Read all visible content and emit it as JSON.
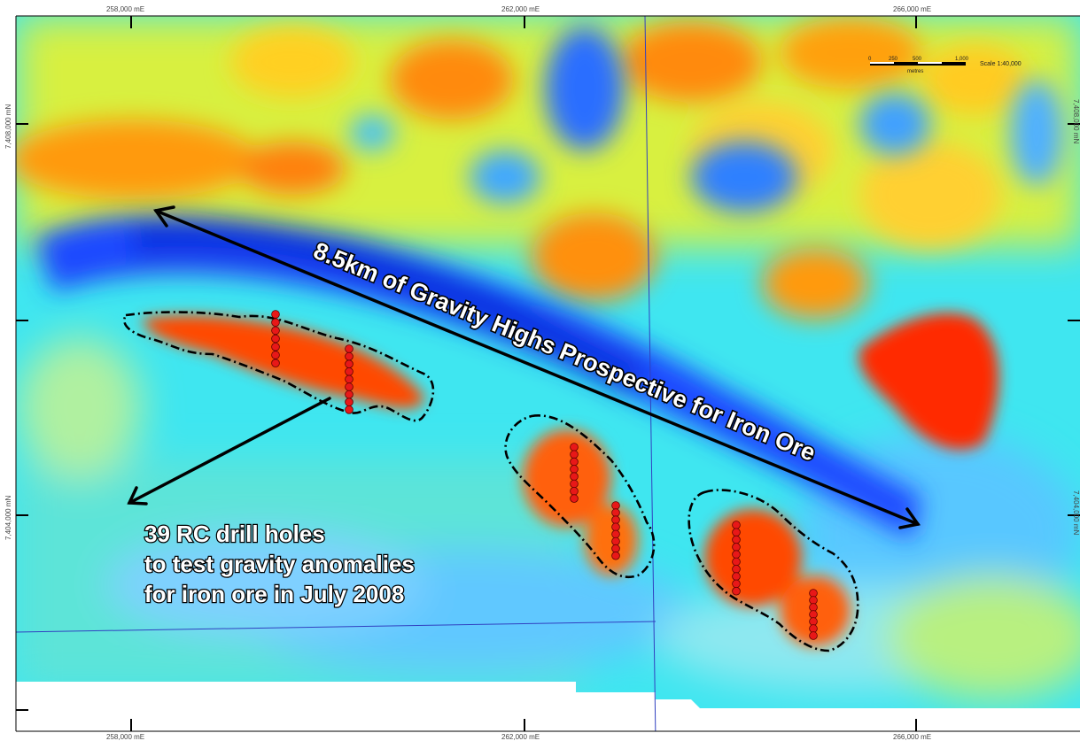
{
  "map": {
    "grid_top": [
      "258,000 mE",
      "262,000 mE",
      "266,000 mE"
    ],
    "grid_bottom": [
      "258,000 mE",
      "262,000 mE",
      "266,000 mE"
    ],
    "grid_left": [
      "7,408,000 mN",
      "7,404,000 mN"
    ],
    "grid_right": [
      "7,408,000 mN",
      "7,404,000 mN"
    ],
    "scale": {
      "label": "Scale 1:40,000",
      "ticks": [
        "0",
        "250",
        "500",
        "1,000"
      ],
      "unit": "metres"
    },
    "annotations": {
      "trend_label": "8.5km of Gravity Highs Prospective for Iron Ore",
      "drill_note_lines": [
        "39 RC drill holes",
        "to test gravity anomalies",
        "for iron ore in July 2008"
      ]
    },
    "colors": {
      "gravity_high": "#ff2a00",
      "gravity_mid": "#ffff33",
      "gravity_low": "#1060ff",
      "background_field": "#33e0f0",
      "drill_hole": "#e81818",
      "tenement_line": "#3040c0"
    }
  }
}
